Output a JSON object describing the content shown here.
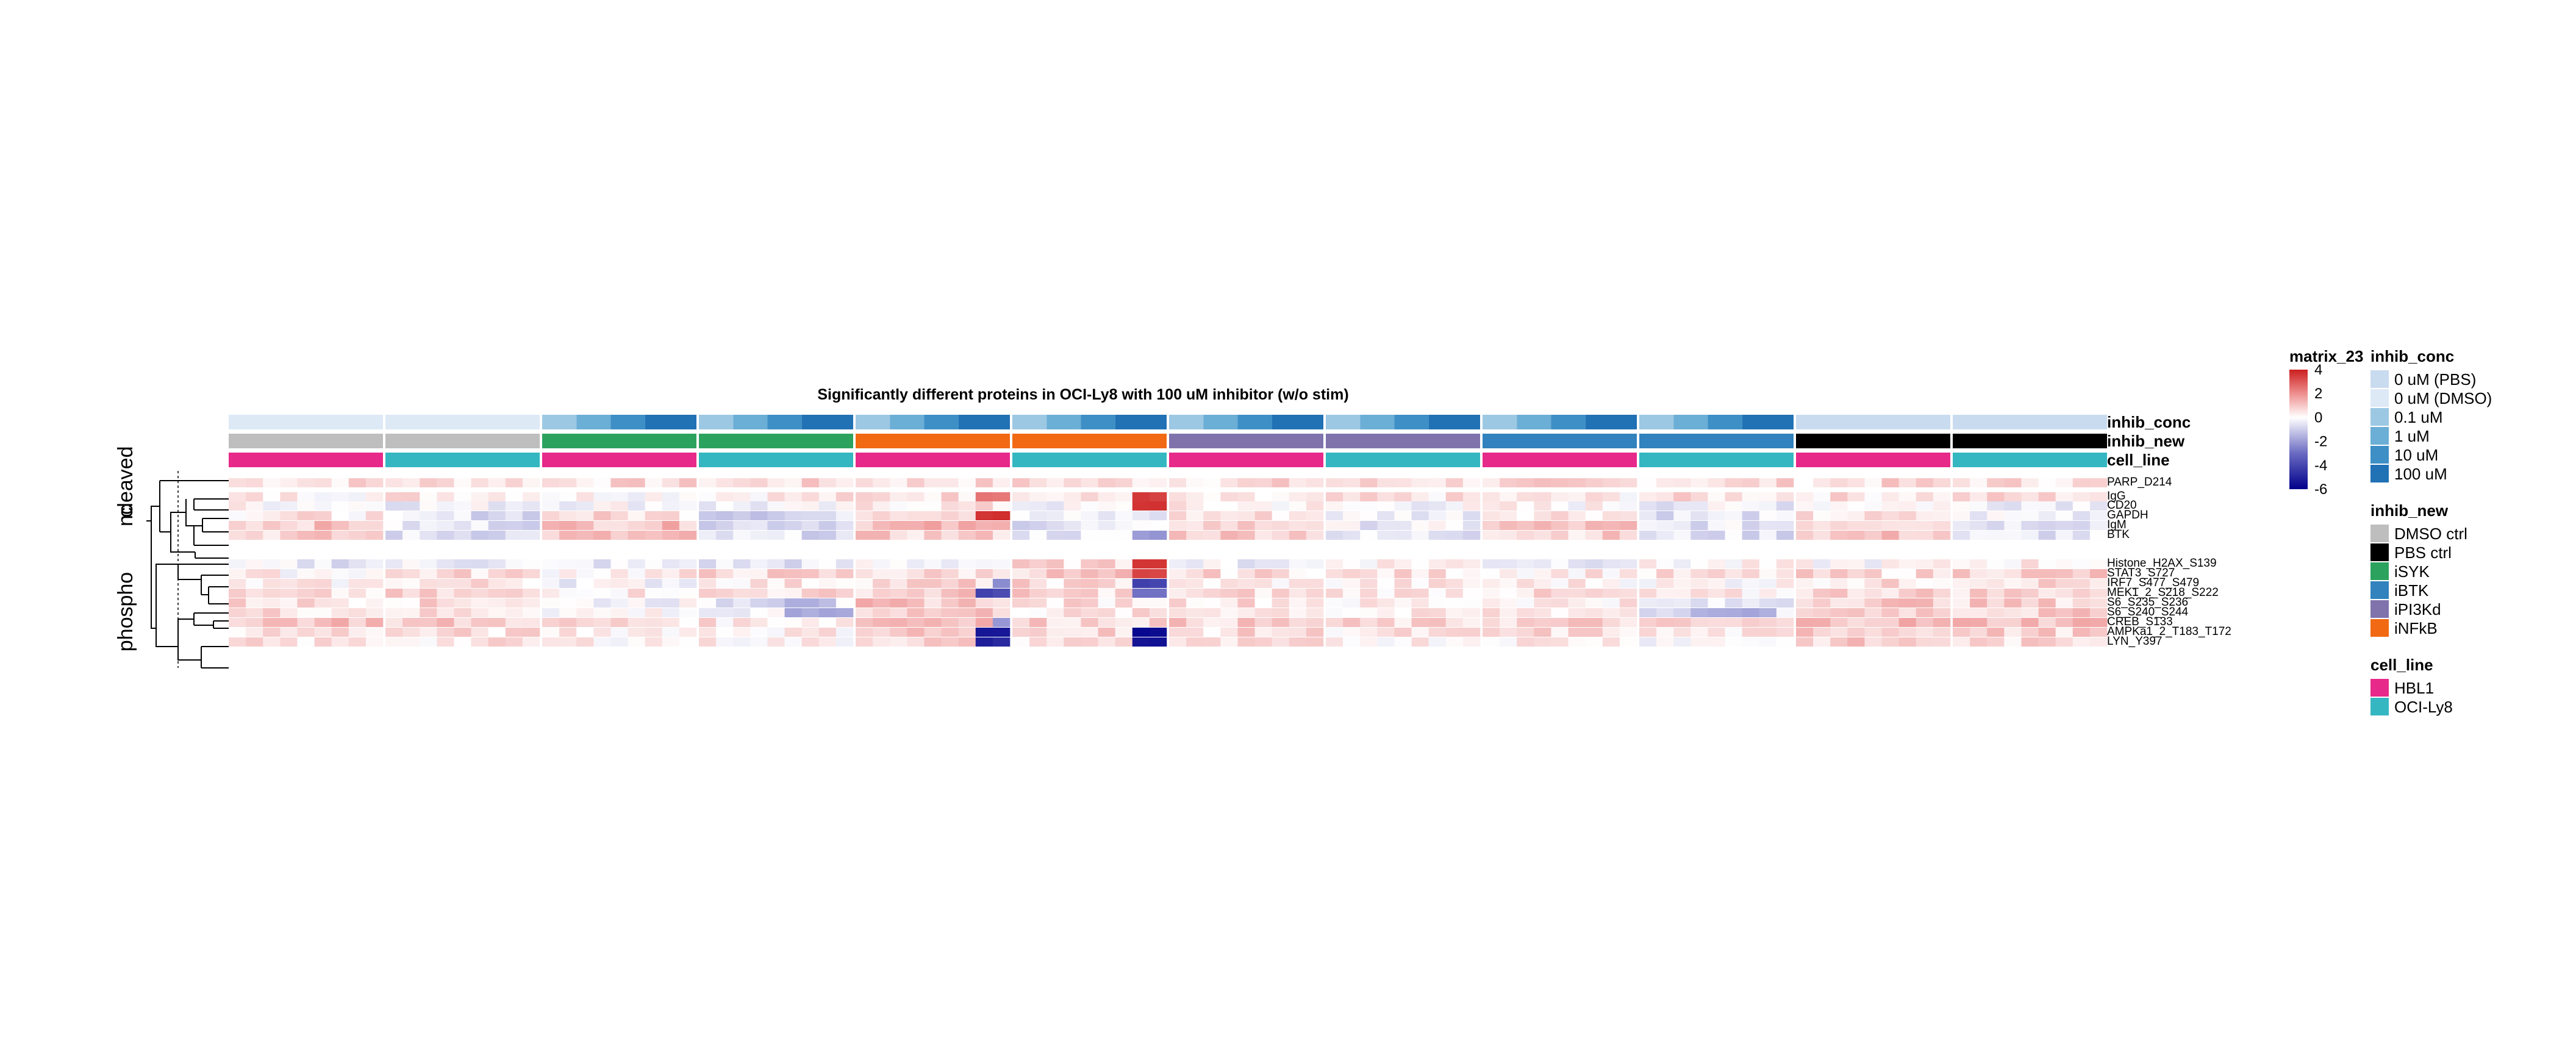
{
  "chart_data": {
    "type": "heatmap",
    "title": "Significantly different proteins in OCI-Ly8 with 100 uM inhibitor (w/o stim)",
    "group_order": [
      "DMSO ctrl",
      "DMSO ctrl",
      "iSYK",
      "iSYK",
      "iNFkB",
      "iNFkB",
      "iPI3Kd",
      "iPI3Kd",
      "iBTK",
      "iBTK",
      "PBS ctrl",
      "PBS ctrl"
    ],
    "cell_order": [
      "HBL1",
      "OCI-Ly8",
      "HBL1",
      "OCI-Ly8",
      "HBL1",
      "OCI-Ly8",
      "HBL1",
      "OCI-Ly8",
      "HBL1",
      "OCI-Ly8",
      "HBL1",
      "OCI-Ly8"
    ],
    "annotation_rows": [
      "inhib_conc",
      "inhib_new",
      "cell_line"
    ],
    "row_groups": [
      {
        "label": "cleaved",
        "rows": [
          "PARP_D214"
        ]
      },
      {
        "label": "nc",
        "rows": [
          "IgG",
          "CD20",
          "GAPDH",
          "IgM",
          "BTK"
        ]
      },
      {
        "label": "phospho",
        "rows": [
          "Histone_H2AX_S139",
          "STAT3_S727",
          "IRF7_S477_S479",
          "MEK1_2_S218_S222",
          "S6_S235_S236",
          "S6_S240_S244",
          "CREB_S133",
          "AMPKa1_2_T183_T172",
          "LYN_Y397"
        ]
      }
    ],
    "rows": [
      "PARP_D214",
      "IgG",
      "CD20",
      "GAPDH",
      "IgM",
      "BTK",
      "Histone_H2AX_S139",
      "STAT3_S727",
      "IRF7_S477_S479",
      "MEK1_2_S218_S222",
      "S6_S235_S236",
      "S6_S240_S244",
      "CREB_S133",
      "AMPKa1_2_T183_T172",
      "LYN_Y397"
    ],
    "row_values": [
      [
        0.6,
        0.6,
        0.6,
        0.6,
        0.6,
        0.6,
        0.6,
        0.6,
        0.6,
        0.6,
        0.6,
        0.6
      ],
      [
        0.3,
        0.5,
        0.2,
        0.4,
        0.6,
        0.3,
        0.1,
        0.4,
        0.3,
        0.5,
        0.5,
        0.6
      ],
      [
        0.1,
        -0.2,
        0.0,
        -0.3,
        0.4,
        -0.2,
        0.2,
        -0.1,
        0.1,
        -0.3,
        0.2,
        -0.1
      ],
      [
        0.4,
        -0.6,
        0.6,
        -0.8,
        1.0,
        -0.4,
        0.5,
        -0.2,
        0.6,
        -0.5,
        0.4,
        -0.2
      ],
      [
        1.0,
        -0.5,
        1.1,
        -0.6,
        1.2,
        -0.5,
        0.8,
        -0.3,
        1.0,
        -0.5,
        0.9,
        -0.4
      ],
      [
        0.8,
        -0.6,
        1.0,
        -0.6,
        0.8,
        -0.4,
        1.0,
        -0.5,
        0.8,
        -0.6,
        1.0,
        -0.5
      ],
      [
        -0.4,
        -0.3,
        -0.4,
        -0.5,
        -0.1,
        0.6,
        -0.3,
        0.3,
        -0.2,
        0.0,
        0.0,
        0.3
      ],
      [
        0.2,
        0.6,
        0.3,
        0.7,
        0.6,
        0.9,
        0.6,
        0.5,
        0.4,
        0.4,
        0.6,
        0.9
      ],
      [
        0.2,
        0.5,
        -0.1,
        0.4,
        0.7,
        0.6,
        0.3,
        0.3,
        0.3,
        0.1,
        0.5,
        0.7
      ],
      [
        0.4,
        0.6,
        0.4,
        0.6,
        0.9,
        0.7,
        0.6,
        0.5,
        0.5,
        0.2,
        0.8,
        0.8
      ],
      [
        0.6,
        0.6,
        -0.1,
        -0.5,
        1.0,
        0.5,
        0.6,
        0.2,
        0.4,
        -0.6,
        1.0,
        0.8
      ],
      [
        0.6,
        0.5,
        0.1,
        -0.4,
        1.0,
        0.4,
        0.6,
        0.2,
        0.5,
        -0.6,
        1.0,
        0.8
      ],
      [
        1.2,
        0.9,
        0.6,
        0.4,
        1.4,
        0.8,
        0.8,
        0.6,
        0.8,
        0.6,
        1.2,
        1.2
      ],
      [
        0.6,
        0.5,
        0.4,
        0.3,
        1.0,
        0.8,
        0.6,
        0.4,
        0.6,
        0.3,
        1.0,
        0.8
      ],
      [
        0.4,
        0.4,
        0.3,
        0.2,
        0.8,
        0.6,
        0.4,
        0.3,
        0.4,
        0.1,
        0.8,
        0.6
      ]
    ],
    "highlights": [
      {
        "row": "IgG",
        "group": 4,
        "cols": [
          7,
          8
        ],
        "value": 2.6
      },
      {
        "row": "IgG",
        "group": 5,
        "cols": [
          7,
          8
        ],
        "value": 3.4
      },
      {
        "row": "CD20",
        "group": 5,
        "cols": [
          7,
          8
        ],
        "value": 3.6
      },
      {
        "row": "GAPDH",
        "group": 4,
        "cols": [
          7,
          8
        ],
        "value": 3.8
      },
      {
        "row": "BTK",
        "group": 5,
        "cols": [
          7,
          8
        ],
        "value": -2.0
      },
      {
        "row": "Histone_H2AX_S139",
        "group": 5,
        "cols": [
          7,
          8
        ],
        "value": 3.8
      },
      {
        "row": "STAT3_S727",
        "group": 5,
        "cols": [
          7,
          8
        ],
        "value": 3.2
      },
      {
        "row": "IRF7_S477_S479",
        "group": 5,
        "cols": [
          7,
          8
        ],
        "value": -4.2
      },
      {
        "row": "IRF7_S477_S479",
        "group": 4,
        "cols": [
          8
        ],
        "value": -2.5
      },
      {
        "row": "MEK1_2_S218_S222",
        "group": 4,
        "cols": [
          7,
          8
        ],
        "value": -4.0
      },
      {
        "row": "MEK1_2_S218_S222",
        "group": 5,
        "cols": [
          7,
          8
        ],
        "value": -3.0
      },
      {
        "row": "S6_S235_S236",
        "group": 3,
        "cols": [
          5,
          6,
          7
        ],
        "value": -1.5
      },
      {
        "row": "S6_S240_S244",
        "group": 3,
        "cols": [
          5,
          6,
          7,
          8
        ],
        "value": -1.8
      },
      {
        "row": "S6_S240_S244",
        "group": 9,
        "cols": [
          3,
          4,
          5,
          6,
          7
        ],
        "value": -1.7
      },
      {
        "row": "CREB_S133",
        "group": 4,
        "cols": [
          8
        ],
        "value": -2.2
      },
      {
        "row": "AMPKa1_2_T183_T172",
        "group": 4,
        "cols": [
          7,
          8
        ],
        "value": -5.5
      },
      {
        "row": "AMPKa1_2_T183_T172",
        "group": 5,
        "cols": [
          7,
          8
        ],
        "value": -5.8
      },
      {
        "row": "LYN_Y397",
        "group": 4,
        "cols": [
          7,
          8
        ],
        "value": -5.0
      },
      {
        "row": "LYN_Y397",
        "group": 5,
        "cols": [
          7,
          8
        ],
        "value": -5.5
      }
    ],
    "color_scale": {
      "name": "matrix_23",
      "ticks": [
        4,
        2,
        0,
        -2,
        -4,
        -6
      ],
      "range": [
        -6,
        4
      ],
      "stops": [
        {
          "v": -6,
          "color": "#00008b"
        },
        {
          "v": -3,
          "color": "#6a6ac2"
        },
        {
          "v": 0,
          "color": "#ffffff"
        },
        {
          "v": 2,
          "color": "#ee8f8f"
        },
        {
          "v": 4,
          "color": "#cc1f1f"
        }
      ]
    },
    "legends": [
      {
        "title": "inhib_conc",
        "items": [
          {
            "label": "0 uM (PBS)",
            "color": "#c9dbef"
          },
          {
            "label": "0 uM (DMSO)",
            "color": "#dde9f5"
          },
          {
            "label": "0.1 uM",
            "color": "#9cc8e3"
          },
          {
            "label": "1 uM",
            "color": "#6baed6"
          },
          {
            "label": "10 uM",
            "color": "#3d8fc6"
          },
          {
            "label": "100 uM",
            "color": "#2171b5"
          }
        ]
      },
      {
        "title": "inhib_new",
        "items": [
          {
            "label": "DMSO ctrl",
            "color": "#bebebe"
          },
          {
            "label": "PBS ctrl",
            "color": "#000000"
          },
          {
            "label": "iSYK",
            "color": "#2ca25f"
          },
          {
            "label": "iBTK",
            "color": "#3182bd"
          },
          {
            "label": "iPI3Kd",
            "color": "#8073ac"
          },
          {
            "label": "iNFkB",
            "color": "#f16913"
          }
        ]
      },
      {
        "title": "cell_line",
        "items": [
          {
            "label": "HBL1",
            "color": "#e7298a"
          },
          {
            "label": "OCI-Ly8",
            "color": "#35b7c1"
          }
        ]
      }
    ]
  }
}
